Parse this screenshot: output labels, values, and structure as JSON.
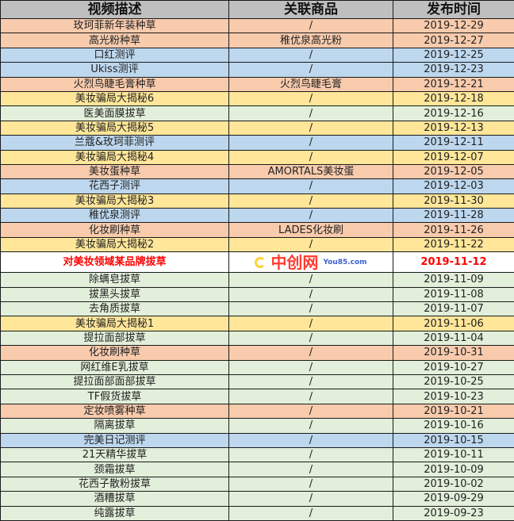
{
  "colors": {
    "header": "#bfbfbf",
    "orange": "#f8cbad",
    "blue": "#bdd7ee",
    "yellow": "#ffe699",
    "green": "#e2efda",
    "highlight_text": "#ff0000"
  },
  "headers": [
    "视频描述",
    "关联商品",
    "发布时间"
  ],
  "rows": [
    {
      "desc": "玫珂菲新年装种草",
      "product": "/",
      "date": "2019-12-29",
      "color": "orange"
    },
    {
      "desc": "高光粉种草",
      "product": "稚优泉高光粉",
      "date": "2019-12-27",
      "color": "orange"
    },
    {
      "desc": "口红测评",
      "product": "/",
      "date": "2019-12-25",
      "color": "blue"
    },
    {
      "desc": "Ukiss测评",
      "product": "/",
      "date": "2019-12-23",
      "color": "blue"
    },
    {
      "desc": "火烈鸟睫毛膏种草",
      "product": "火烈鸟睫毛膏",
      "date": "2019-12-21",
      "color": "orange"
    },
    {
      "desc": "美妆骗局大揭秘6",
      "product": "/",
      "date": "2019-12-18",
      "color": "yellow"
    },
    {
      "desc": "医美面膜拔草",
      "product": "/",
      "date": "2019-12-16",
      "color": "green"
    },
    {
      "desc": "美妆骗局大揭秘5",
      "product": "/",
      "date": "2019-12-13",
      "color": "yellow"
    },
    {
      "desc": "兰蔻&玫珂菲测评",
      "product": "/",
      "date": "2019-12-11",
      "color": "blue"
    },
    {
      "desc": "美妆骗局大揭秘4",
      "product": "/",
      "date": "2019-12-07",
      "color": "yellow"
    },
    {
      "desc": "美妆蛋种草",
      "product": "AMORTALS美妆蛋",
      "date": "2019-12-05",
      "color": "orange"
    },
    {
      "desc": "花西子测评",
      "product": "/",
      "date": "2019-12-03",
      "color": "blue"
    },
    {
      "desc": "美妆骗局大揭秘3",
      "product": "/",
      "date": "2019-11-30",
      "color": "yellow"
    },
    {
      "desc": "稚优泉测评",
      "product": "/",
      "date": "2019-11-28",
      "color": "blue"
    },
    {
      "desc": "化妆刷种草",
      "product": "LADES化妆刷",
      "date": "2019-11-26",
      "color": "orange"
    },
    {
      "desc": "美妆骗局大揭秘2",
      "product": "/",
      "date": "2019-11-22",
      "color": "yellow"
    },
    {
      "desc": "对美妆领域某品牌拔草",
      "product": "",
      "date": "2019-11-12",
      "color": "white"
    },
    {
      "desc": "除螨皂拔草",
      "product": "/",
      "date": "2019-11-09",
      "color": "green"
    },
    {
      "desc": "拔黑头拔草",
      "product": "/",
      "date": "2019-11-08",
      "color": "green"
    },
    {
      "desc": "去角质拔草",
      "product": "/",
      "date": "2019-11-07",
      "color": "green"
    },
    {
      "desc": "美妆骗局大揭秘1",
      "product": "/",
      "date": "2019-11-06",
      "color": "yellow"
    },
    {
      "desc": "提拉面部拔草",
      "product": "/",
      "date": "2019-11-04",
      "color": "green"
    },
    {
      "desc": "化妆刷种草",
      "product": "/",
      "date": "2019-10-31",
      "color": "orange"
    },
    {
      "desc": "网红维E乳拔草",
      "product": "/",
      "date": "2019-10-27",
      "color": "green"
    },
    {
      "desc": "提拉面部面部拔草",
      "product": "/",
      "date": "2019-10-25",
      "color": "green"
    },
    {
      "desc": "TF假货拔草",
      "product": "/",
      "date": "2019-10-23",
      "color": "green"
    },
    {
      "desc": "定妆喷雾种草",
      "product": "/",
      "date": "2019-10-21",
      "color": "orange"
    },
    {
      "desc": "隔离拔草",
      "product": "/",
      "date": "2019-10-16",
      "color": "green"
    },
    {
      "desc": "完美日记测评",
      "product": "/",
      "date": "2019-10-15",
      "color": "blue"
    },
    {
      "desc": "21天精华拔草",
      "product": "/",
      "date": "2019-10-11",
      "color": "green"
    },
    {
      "desc": "颈霜拔草",
      "product": "/",
      "date": "2019-10-09",
      "color": "green"
    },
    {
      "desc": "花西子散粉拔草",
      "product": "/",
      "date": "2019-10-02",
      "color": "green"
    },
    {
      "desc": "酒糟拔草",
      "product": "/",
      "date": "2019-09-29",
      "color": "green"
    },
    {
      "desc": "纯露拔草",
      "product": "/",
      "date": "2019-09-23",
      "color": "green"
    }
  ],
  "watermark": {
    "title": "中创网",
    "site": "You85.com"
  }
}
